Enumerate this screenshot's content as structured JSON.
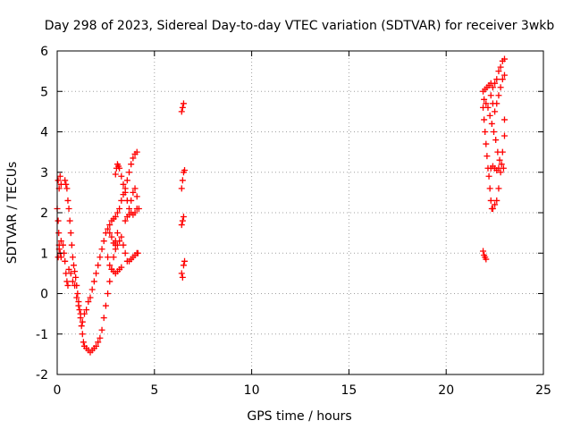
{
  "chart_data": {
    "type": "scatter",
    "title": "Day 298 of 2023, Sidereal Day-to-day VTEC variation (SDTVAR) for receiver 3wkb",
    "xlabel": "GPS time / hours",
    "ylabel": "SDTVAR / TECUs",
    "xlim": [
      0,
      25
    ],
    "ylim": [
      -2,
      6
    ],
    "xticks": [
      "0",
      "5",
      "10",
      "15",
      "20",
      "25"
    ],
    "yticks": [
      "-2",
      "-1",
      "0",
      "1",
      "2",
      "3",
      "4",
      "5",
      "6"
    ],
    "grid": true,
    "marker": "plus",
    "marker_color": "#ff0000",
    "series": [
      {
        "name": "SDTVAR",
        "points": [
          [
            0.0,
            2.1
          ],
          [
            0.05,
            1.8
          ],
          [
            0.08,
            1.5
          ],
          [
            0.1,
            1.2
          ],
          [
            0.15,
            1.0
          ],
          [
            0.2,
            0.9
          ],
          [
            0.05,
            2.8
          ],
          [
            0.1,
            2.6
          ],
          [
            0.15,
            2.9
          ],
          [
            0.2,
            2.7
          ],
          [
            0.05,
            0.9
          ],
          [
            0.1,
            1.1
          ],
          [
            0.2,
            1.3
          ],
          [
            0.3,
            1.2
          ],
          [
            0.35,
            1.0
          ],
          [
            0.4,
            0.8
          ],
          [
            0.45,
            0.5
          ],
          [
            0.5,
            0.3
          ],
          [
            0.55,
            0.2
          ],
          [
            0.4,
            2.8
          ],
          [
            0.45,
            2.7
          ],
          [
            0.5,
            2.6
          ],
          [
            0.55,
            2.3
          ],
          [
            0.6,
            2.1
          ],
          [
            0.65,
            1.8
          ],
          [
            0.7,
            1.5
          ],
          [
            0.75,
            1.2
          ],
          [
            0.8,
            0.9
          ],
          [
            0.85,
            0.7
          ],
          [
            0.9,
            0.55
          ],
          [
            0.95,
            0.4
          ],
          [
            1.0,
            0.2
          ],
          [
            1.05,
            0.0
          ],
          [
            1.1,
            -0.2
          ],
          [
            1.15,
            -0.4
          ],
          [
            1.2,
            -0.6
          ],
          [
            1.25,
            -0.8
          ],
          [
            1.3,
            -1.0
          ],
          [
            1.35,
            -1.2
          ],
          [
            1.4,
            -1.3
          ],
          [
            1.5,
            -1.35
          ],
          [
            1.6,
            -1.4
          ],
          [
            1.7,
            -1.45
          ],
          [
            1.8,
            -1.4
          ],
          [
            1.9,
            -1.35
          ],
          [
            2.0,
            -1.3
          ],
          [
            2.1,
            -1.2
          ],
          [
            2.2,
            -1.1
          ],
          [
            2.3,
            -0.9
          ],
          [
            2.4,
            -0.6
          ],
          [
            2.5,
            -0.3
          ],
          [
            2.6,
            0.0
          ],
          [
            2.7,
            0.3
          ],
          [
            2.8,
            0.6
          ],
          [
            2.9,
            0.9
          ],
          [
            3.0,
            1.2
          ],
          [
            3.1,
            1.5
          ],
          [
            3.0,
            1.3
          ],
          [
            0.6,
            0.6
          ],
          [
            0.7,
            0.5
          ],
          [
            0.8,
            0.3
          ],
          [
            0.9,
            0.2
          ],
          [
            1.0,
            -0.1
          ],
          [
            1.1,
            -0.3
          ],
          [
            1.2,
            -0.5
          ],
          [
            1.3,
            -0.7
          ],
          [
            1.4,
            -0.5
          ],
          [
            1.5,
            -0.4
          ],
          [
            1.6,
            -0.2
          ],
          [
            1.7,
            -0.1
          ],
          [
            1.8,
            0.1
          ],
          [
            1.9,
            0.3
          ],
          [
            2.0,
            0.5
          ],
          [
            2.1,
            0.7
          ],
          [
            2.2,
            0.9
          ],
          [
            2.3,
            1.1
          ],
          [
            2.4,
            1.3
          ],
          [
            2.5,
            1.5
          ],
          [
            2.6,
            1.6
          ],
          [
            2.7,
            1.7
          ],
          [
            2.8,
            1.8
          ],
          [
            2.9,
            1.85
          ],
          [
            3.0,
            1.9
          ],
          [
            3.1,
            2.0
          ],
          [
            3.2,
            2.1
          ],
          [
            3.3,
            2.3
          ],
          [
            3.4,
            2.45
          ],
          [
            3.5,
            2.6
          ],
          [
            3.6,
            2.8
          ],
          [
            3.7,
            3.0
          ],
          [
            3.8,
            3.2
          ],
          [
            3.9,
            3.35
          ],
          [
            4.0,
            3.45
          ],
          [
            4.1,
            3.5
          ],
          [
            3.5,
            1.8
          ],
          [
            3.6,
            1.9
          ],
          [
            3.7,
            1.95
          ],
          [
            3.8,
            2.0
          ],
          [
            3.9,
            1.95
          ],
          [
            4.0,
            2.0
          ],
          [
            4.1,
            2.1
          ],
          [
            4.2,
            2.1
          ],
          [
            3.0,
            2.95
          ],
          [
            3.05,
            3.1
          ],
          [
            3.1,
            3.2
          ],
          [
            3.15,
            3.15
          ],
          [
            3.2,
            3.1
          ],
          [
            3.3,
            2.9
          ],
          [
            3.4,
            2.7
          ],
          [
            3.5,
            2.5
          ],
          [
            3.6,
            2.3
          ],
          [
            3.7,
            2.1
          ],
          [
            3.8,
            2.3
          ],
          [
            3.9,
            2.5
          ],
          [
            4.0,
            2.6
          ],
          [
            4.1,
            2.4
          ],
          [
            2.7,
            1.5
          ],
          [
            2.8,
            1.4
          ],
          [
            2.9,
            1.25
          ],
          [
            3.0,
            1.1
          ],
          [
            3.1,
            1.2
          ],
          [
            3.2,
            1.3
          ],
          [
            3.3,
            1.4
          ],
          [
            3.4,
            1.2
          ],
          [
            3.5,
            1.0
          ],
          [
            3.6,
            0.8
          ],
          [
            3.7,
            0.8
          ],
          [
            3.8,
            0.85
          ],
          [
            3.9,
            0.9
          ],
          [
            4.0,
            0.95
          ],
          [
            4.1,
            1.0
          ],
          [
            4.15,
            1.0
          ],
          [
            2.6,
            0.9
          ],
          [
            2.7,
            0.7
          ],
          [
            2.8,
            0.6
          ],
          [
            2.9,
            0.55
          ],
          [
            3.0,
            0.5
          ],
          [
            3.1,
            0.55
          ],
          [
            3.2,
            0.6
          ],
          [
            3.3,
            0.65
          ],
          [
            6.4,
            0.5
          ],
          [
            6.45,
            0.4
          ],
          [
            6.5,
            0.7
          ],
          [
            6.55,
            0.8
          ],
          [
            6.4,
            1.7
          ],
          [
            6.45,
            1.8
          ],
          [
            6.5,
            1.9
          ],
          [
            6.4,
            2.6
          ],
          [
            6.45,
            2.8
          ],
          [
            6.5,
            3.0
          ],
          [
            6.55,
            3.05
          ],
          [
            6.4,
            4.5
          ],
          [
            6.45,
            4.6
          ],
          [
            6.5,
            4.7
          ],
          [
            21.9,
            1.05
          ],
          [
            21.95,
            0.95
          ],
          [
            22.0,
            0.9
          ],
          [
            22.05,
            0.85
          ],
          [
            21.9,
            4.6
          ],
          [
            21.95,
            4.3
          ],
          [
            22.0,
            4.0
          ],
          [
            22.05,
            3.7
          ],
          [
            22.1,
            3.4
          ],
          [
            22.15,
            3.1
          ],
          [
            22.2,
            2.9
          ],
          [
            22.25,
            2.6
          ],
          [
            22.3,
            2.3
          ],
          [
            22.35,
            2.1
          ],
          [
            22.4,
            2.1
          ],
          [
            22.5,
            2.2
          ],
          [
            22.6,
            2.3
          ],
          [
            22.7,
            2.6
          ],
          [
            22.8,
            3.0
          ],
          [
            22.9,
            3.5
          ],
          [
            23.0,
            3.9
          ],
          [
            23.0,
            4.3
          ],
          [
            21.9,
            5.0
          ],
          [
            22.0,
            5.05
          ],
          [
            22.1,
            5.1
          ],
          [
            22.2,
            5.15
          ],
          [
            22.3,
            5.2
          ],
          [
            22.4,
            5.1
          ],
          [
            22.5,
            5.2
          ],
          [
            22.6,
            5.3
          ],
          [
            22.7,
            5.5
          ],
          [
            22.8,
            5.6
          ],
          [
            22.9,
            5.75
          ],
          [
            23.0,
            5.8
          ],
          [
            21.95,
            4.8
          ],
          [
            22.05,
            4.7
          ],
          [
            22.15,
            4.6
          ],
          [
            22.25,
            4.4
          ],
          [
            22.35,
            4.2
          ],
          [
            22.45,
            4.0
          ],
          [
            22.55,
            3.8
          ],
          [
            22.65,
            3.5
          ],
          [
            22.75,
            3.3
          ],
          [
            22.85,
            3.2
          ],
          [
            22.95,
            3.1
          ],
          [
            22.3,
            3.1
          ],
          [
            22.4,
            3.15
          ],
          [
            22.5,
            3.1
          ],
          [
            22.6,
            3.05
          ],
          [
            22.7,
            3.1
          ],
          [
            22.3,
            4.9
          ],
          [
            22.4,
            4.7
          ],
          [
            22.5,
            4.5
          ],
          [
            22.6,
            4.7
          ],
          [
            22.7,
            4.9
          ],
          [
            22.8,
            5.1
          ],
          [
            22.9,
            5.3
          ],
          [
            23.0,
            5.4
          ]
        ]
      }
    ]
  }
}
